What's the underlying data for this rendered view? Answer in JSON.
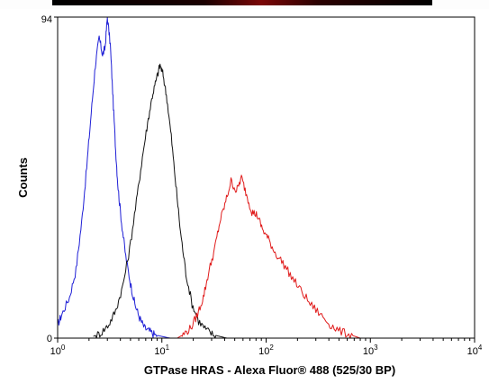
{
  "chart_data": {
    "type": "line",
    "title": "",
    "xlabel": "GTPase HRAS - Alexa Fluor® 488 (525/30 BP)",
    "ylabel": "Counts",
    "x_scale": "log",
    "xlim": [
      1,
      10000
    ],
    "ylim": [
      0,
      94
    ],
    "x_ticks": [
      {
        "value": 1,
        "base": "10",
        "exp": "0"
      },
      {
        "value": 10,
        "base": "10",
        "exp": "1"
      },
      {
        "value": 100,
        "base": "10",
        "exp": "2"
      },
      {
        "value": 1000,
        "base": "10",
        "exp": "3"
      },
      {
        "value": 10000,
        "base": "10",
        "exp": "4"
      }
    ],
    "y_ticks": [
      {
        "value": 0,
        "label": "0"
      },
      {
        "value": 94,
        "label": "94"
      }
    ],
    "grid": false,
    "legend": "none",
    "series": [
      {
        "color": "#1f1fd6",
        "x": [
          1,
          1.1,
          1.3,
          1.5,
          1.7,
          1.9,
          2.1,
          2.3,
          2.5,
          2.7,
          2.85,
          3.0,
          3.2,
          3.4,
          3.6,
          3.8,
          4.1,
          4.5,
          5.0,
          5.5,
          6.1,
          6.8,
          7.6,
          8.5,
          10,
          12
        ],
        "y": [
          4,
          7,
          12,
          20,
          34,
          50,
          66,
          80,
          88,
          83,
          85,
          94,
          86,
          70,
          55,
          44,
          34,
          24,
          16,
          10,
          6,
          3,
          2,
          1,
          0.5,
          0
        ]
      },
      {
        "color": "#111111",
        "x": [
          2.2,
          2.6,
          3.1,
          3.6,
          4.2,
          4.9,
          5.7,
          6.5,
          7.3,
          8.1,
          8.9,
          9.6,
          10.3,
          11.2,
          12.3,
          13.6,
          15.1,
          17,
          19.5,
          22.5,
          26.5,
          31,
          36,
          42
        ],
        "y": [
          0.5,
          1.5,
          4,
          8,
          15,
          26,
          40,
          53,
          63,
          71,
          76,
          80,
          77,
          70,
          59,
          45,
          31,
          19,
          10,
          5,
          2.5,
          1,
          0.5,
          0
        ]
      },
      {
        "color": "#e01b1b",
        "x": [
          14,
          16,
          19,
          22,
          25,
          28,
          32,
          36,
          41,
          46,
          52,
          58,
          65,
          73,
          82,
          92,
          105,
          122,
          145,
          175,
          215,
          265,
          330,
          410,
          510,
          640,
          800
        ],
        "y": [
          0,
          1,
          3,
          7,
          12,
          19,
          26,
          34,
          40,
          46,
          43,
          47,
          42,
          37,
          36,
          32,
          29,
          25,
          22,
          18,
          14,
          10,
          7,
          4,
          2,
          1,
          0
        ]
      }
    ]
  }
}
